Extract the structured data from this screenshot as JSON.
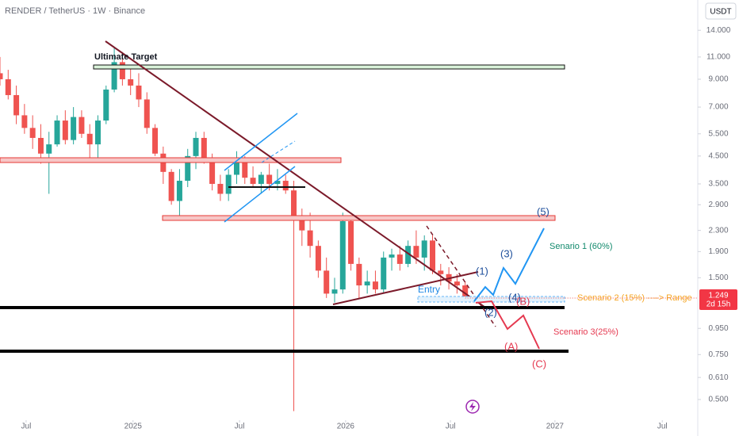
{
  "header": {
    "symbol": "RENDER / TetherUS · 1W · Binance",
    "currency": "USDT"
  },
  "chart_data": {
    "type": "candlestick",
    "log_scale": true,
    "up_color": "#26a69a",
    "down_color": "#ef5350",
    "x": [
      0,
      2,
      4,
      6,
      8,
      10,
      12,
      14,
      16,
      18,
      20,
      22,
      24,
      26,
      28,
      30,
      32,
      34,
      36,
      38,
      40,
      42,
      44,
      46,
      48,
      50,
      52,
      54,
      56,
      58,
      60,
      62,
      64,
      66,
      68,
      70,
      72,
      74,
      76,
      78,
      80,
      82,
      84,
      86,
      88,
      90,
      92,
      94,
      96,
      98,
      100,
      102,
      104,
      106,
      108,
      110,
      112,
      114
    ],
    "open": [
      9.5,
      9.0,
      7.8,
      6.5,
      5.8,
      5.3,
      4.6,
      5.0,
      6.2,
      5.2,
      6.4,
      5.5,
      5.0,
      6.2,
      8.2,
      10.5,
      9.0,
      8.5,
      7.5,
      5.8,
      4.6,
      3.9,
      3.0,
      3.6,
      4.5,
      5.3,
      4.4,
      3.5,
      3.2,
      3.8,
      4.3,
      3.7,
      3.5,
      3.8,
      3.5,
      3.6,
      3.3,
      2.6,
      2.3,
      2.0,
      1.6,
      1.3,
      1.35,
      2.5,
      1.7,
      1.4,
      1.45,
      1.35,
      1.8,
      1.85,
      1.7,
      2.0,
      1.8,
      2.1,
      1.6,
      1.55,
      1.45,
      1.4
    ],
    "high": [
      11,
      9.8,
      8.5,
      7.2,
      6.5,
      6.0,
      5.6,
      6.5,
      6.8,
      7.0,
      6.8,
      6.0,
      6.5,
      8.5,
      12.0,
      11.5,
      10.0,
      9.5,
      8.0,
      6.0,
      4.9,
      4.0,
      4.0,
      4.8,
      5.6,
      5.6,
      4.6,
      3.8,
      4.0,
      4.7,
      4.5,
      4.1,
      3.9,
      4.2,
      4.0,
      3.8,
      3.6,
      2.8,
      2.7,
      2.1,
      1.8,
      1.5,
      2.7,
      2.6,
      1.8,
      1.6,
      1.6,
      1.9,
      1.95,
      2.0,
      2.1,
      2.3,
      2.2,
      2.2,
      1.7,
      1.65,
      1.55,
      1.45
    ],
    "low": [
      8.5,
      7.5,
      6.0,
      5.5,
      4.8,
      4.2,
      3.2,
      4.9,
      5.0,
      5.0,
      5.3,
      4.4,
      4.3,
      6.0,
      8.0,
      8.5,
      7.8,
      7.0,
      5.5,
      4.5,
      3.5,
      2.9,
      2.6,
      3.4,
      4.0,
      4.2,
      3.3,
      3.0,
      3.0,
      3.5,
      3.5,
      3.4,
      3.2,
      3.3,
      3.3,
      3.2,
      0.45,
      2.0,
      1.8,
      1.5,
      1.25,
      1.2,
      1.3,
      1.6,
      1.25,
      1.3,
      1.3,
      1.3,
      1.6,
      1.6,
      1.65,
      1.7,
      1.6,
      1.55,
      1.4,
      1.35,
      1.3,
      1.2
    ],
    "close": [
      9.0,
      7.8,
      6.5,
      5.8,
      5.3,
      4.6,
      5.0,
      6.2,
      5.2,
      6.4,
      5.5,
      5.0,
      6.2,
      8.2,
      10.5,
      9.0,
      8.5,
      7.5,
      5.8,
      4.6,
      3.9,
      3.0,
      3.6,
      4.5,
      5.3,
      4.4,
      3.5,
      3.2,
      3.8,
      4.3,
      3.7,
      3.5,
      3.8,
      3.5,
      3.6,
      3.3,
      2.6,
      2.3,
      2.0,
      1.6,
      1.3,
      1.35,
      2.5,
      1.7,
      1.4,
      1.45,
      1.35,
      1.8,
      1.85,
      1.7,
      2.0,
      1.8,
      2.1,
      1.6,
      1.55,
      1.45,
      1.4,
      1.249
    ],
    "xlim": [
      0,
      171
    ],
    "xticks": [
      {
        "value": 6.4,
        "label": "Jul"
      },
      {
        "value": 32.6,
        "label": "2025"
      },
      {
        "value": 58.7,
        "label": "Jul"
      },
      {
        "value": 84.7,
        "label": "2026"
      },
      {
        "value": 110.4,
        "label": "Jul"
      },
      {
        "value": 136,
        "label": "2027"
      },
      {
        "value": 162.3,
        "label": "Jul"
      }
    ],
    "ylim": [
      0.415,
      18.4
    ],
    "yticks": [
      {
        "value": 14,
        "label": "14.000"
      },
      {
        "value": 11,
        "label": "11.000"
      },
      {
        "value": 9,
        "label": "9.000"
      },
      {
        "value": 7,
        "label": "7.000"
      },
      {
        "value": 5.5,
        "label": "5.500"
      },
      {
        "value": 4.5,
        "label": "4.500"
      },
      {
        "value": 3.5,
        "label": "3.500"
      },
      {
        "value": 2.9,
        "label": "2.900"
      },
      {
        "value": 2.3,
        "label": "2.300"
      },
      {
        "value": 1.9,
        "label": "1.900"
      },
      {
        "value": 1.5,
        "label": "1.500"
      },
      {
        "value": 0.95,
        "label": "0.950"
      },
      {
        "value": 0.75,
        "label": "0.750"
      },
      {
        "value": 0.61,
        "label": "0.610"
      },
      {
        "value": 0.5,
        "label": "0.500"
      }
    ],
    "last_price": 1.249,
    "countdown": "2d 15h"
  },
  "annotations": {
    "target": "Ultimate Target",
    "entry": "Entry",
    "scenario1": "Senario 1 (60%)",
    "scenario2": "Scenario 2 (15%) ----> Range",
    "scenario3": "Scenario 3(25%)",
    "waves": [
      "(1)",
      "(2)",
      "(3)",
      "(4)",
      "(5)",
      "(A)",
      "(B)",
      "(C)"
    ]
  }
}
